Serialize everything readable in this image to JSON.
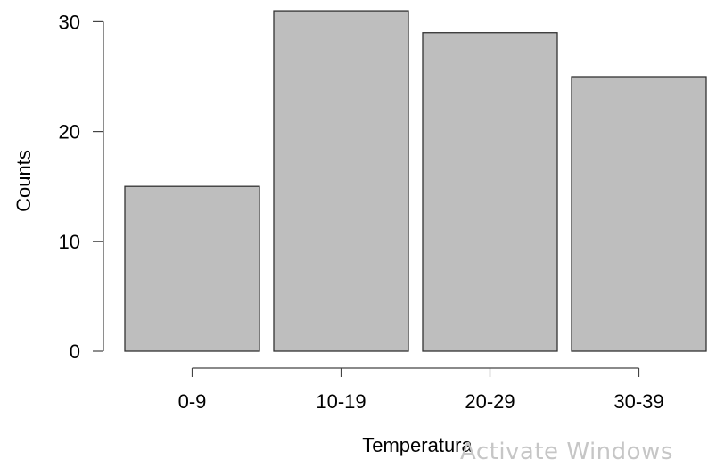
{
  "chart_data": {
    "type": "bar",
    "categories": [
      "0-9",
      "10-19",
      "20-29",
      "30-39"
    ],
    "values": [
      15,
      31,
      29,
      25
    ],
    "xlabel": "Temperatura",
    "ylabel": "Counts",
    "ylim": [
      0,
      31
    ],
    "yticks": [
      0,
      10,
      20,
      30
    ],
    "grid": false,
    "bar_color": "#bebebe",
    "bar_edge_color": "#333333"
  },
  "watermark": {
    "text": "Activate Windows"
  }
}
